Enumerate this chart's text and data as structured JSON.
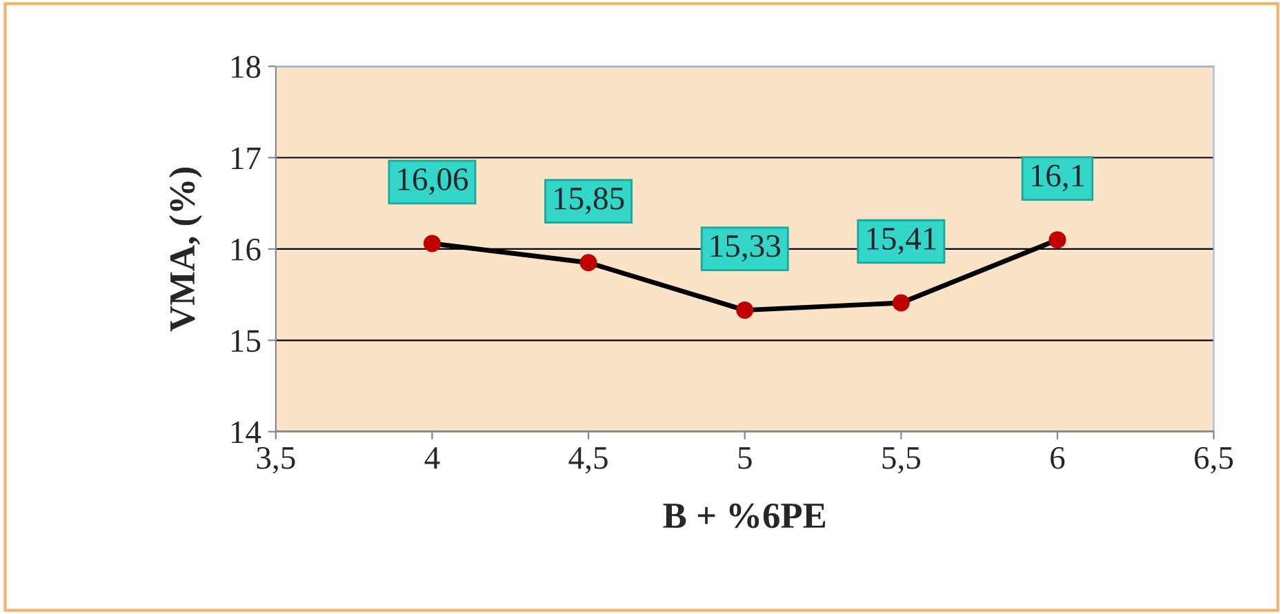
{
  "chart_data": {
    "type": "line",
    "xlabel": "B + %6PE",
    "ylabel": "VMA, (%)",
    "x": [
      4,
      4.5,
      5,
      5.5,
      6
    ],
    "series": [
      {
        "color": "#000000",
        "values": [
          16.06,
          15.85,
          15.33,
          15.41,
          16.1
        ],
        "value_labels": [
          "16,06",
          "15,85",
          "15,33",
          "15,41",
          "16,1"
        ]
      }
    ],
    "xlim": [
      3.5,
      6.5
    ],
    "xticks": [
      {
        "value": 3.5,
        "label": "3,5"
      },
      4,
      {
        "value": 4.5,
        "label": "4,5"
      },
      5,
      {
        "value": 5.5,
        "label": "5,5"
      },
      6,
      {
        "value": 6.5,
        "label": "6,5"
      }
    ],
    "ylim": [
      14,
      18
    ],
    "yticks": [
      14,
      15,
      16,
      17,
      18
    ],
    "grid": "y",
    "marker": "circle",
    "line_style": "solid"
  }
}
